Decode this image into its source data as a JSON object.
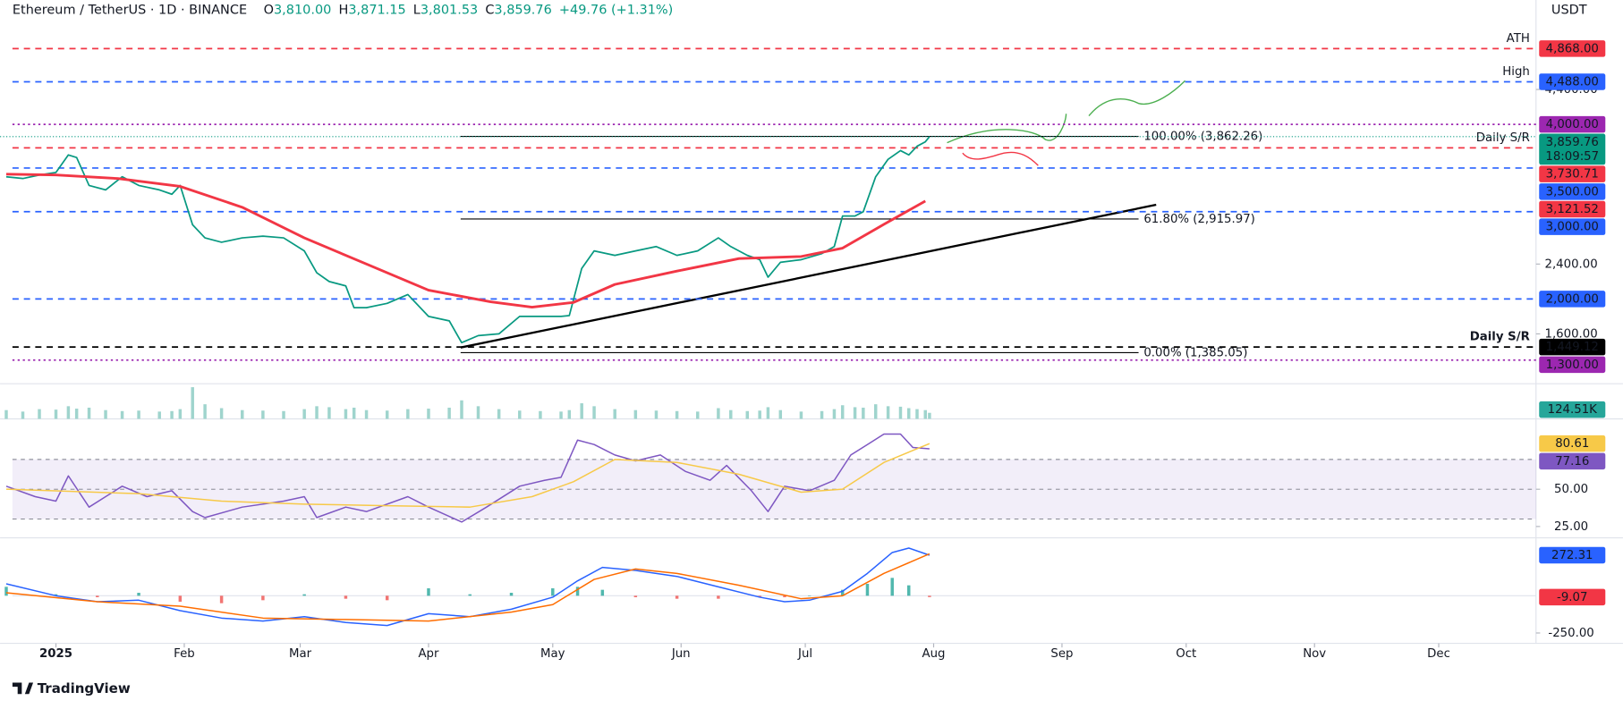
{
  "header": {
    "title": "Ethereum / TetherUS · 1D · BINANCE",
    "ohlc": [
      {
        "key": "O",
        "value": "3,810.00"
      },
      {
        "key": "H",
        "value": "3,871.15"
      },
      {
        "key": "L",
        "value": "3,801.53"
      },
      {
        "key": "C",
        "value": "3,859.76"
      }
    ],
    "change": "+49.76 (+1.31%)",
    "currency": "USDT"
  },
  "footer": {
    "brand": "TradingView"
  },
  "chart_data": [
    {
      "type": "line",
      "xlim": [
        -13.5,
        357.5
      ],
      "ylim": [
        1041,
        5425
      ],
      "yticks": [
        {
          "value": 4400,
          "label": "4,400.00"
        },
        {
          "value": 2400,
          "label": "2,400.00"
        },
        {
          "value": 1600,
          "label": "1,600.00"
        }
      ],
      "series": [
        {
          "color": "#089981",
          "x": [
            -12,
            -8,
            -4,
            0,
            3,
            5,
            8,
            12,
            16,
            20,
            25,
            28,
            30,
            33,
            36,
            40,
            45,
            50,
            55,
            60,
            63,
            66,
            70,
            72,
            75,
            80,
            85,
            90,
            95,
            98,
            102,
            107,
            112,
            117,
            122,
            124,
            127,
            130,
            135,
            140,
            145,
            150,
            155,
            160,
            163,
            167,
            170,
            172,
            175,
            180,
            185,
            188,
            190,
            193,
            195,
            198,
            201,
            204,
            206,
            208,
            210,
            211
          ],
          "values": [
            3400,
            3380,
            3420,
            3450,
            3650,
            3620,
            3300,
            3250,
            3400,
            3300,
            3250,
            3200,
            3300,
            2850,
            2700,
            2650,
            2700,
            2720,
            2700,
            2550,
            2300,
            2200,
            2150,
            1900,
            1900,
            1950,
            2050,
            1800,
            1750,
            1500,
            1580,
            1600,
            1800,
            1800,
            1800,
            1810,
            2350,
            2550,
            2500,
            2550,
            2600,
            2500,
            2550,
            2700,
            2600,
            2500,
            2450,
            2250,
            2420,
            2450,
            2520,
            2600,
            2950,
            2950,
            3000,
            3400,
            3600,
            3700,
            3650,
            3750,
            3800,
            3859.76
          ],
          "tag_label": "3,859.76",
          "tag_sub": "18:09:57"
        },
        {
          "color": "#f23645",
          "x": [
            -12,
            0,
            15,
            30,
            45,
            60,
            75,
            90,
            105,
            115,
            125,
            135,
            150,
            165,
            180,
            190,
            200,
            210
          ],
          "values": [
            3430,
            3420,
            3380,
            3290,
            3050,
            2700,
            2400,
            2100,
            1967,
            1906,
            1960,
            2167,
            2320,
            2463,
            2487,
            2582,
            2855,
            3121.52
          ],
          "tag_label": "3,121.52"
        }
      ],
      "levels": [
        {
          "value": 4868,
          "label": "4,868.00",
          "color": "#f23645",
          "style": "dashed",
          "tag": "ATH"
        },
        {
          "value": 4488,
          "label": "4,488.00",
          "color": "#2962ff",
          "style": "dashed",
          "tag": "High"
        },
        {
          "value": 4000,
          "label": "4,000.00",
          "color": "#9c27b0",
          "style": "dotted"
        },
        {
          "value": 3730.71,
          "label": "3,730.71",
          "color": "#f23645",
          "style": "dashed",
          "tag": "Daily S/R"
        },
        {
          "value": 3500,
          "label": "3,500.00",
          "color": "#2962ff",
          "style": "dashed"
        },
        {
          "value": 3000,
          "label": "3,000.00",
          "color": "#2962ff",
          "style": "dashed"
        },
        {
          "value": 2000,
          "label": "2,000.00",
          "color": "#2962ff",
          "style": "dashed"
        },
        {
          "value": 1449.12,
          "label": "1,449.12",
          "color": "#000000",
          "style": "dashed",
          "tag": "Daily S/R"
        },
        {
          "value": 1300,
          "label": "1,300.00",
          "color": "#9c27b0",
          "style": "dotted"
        }
      ],
      "fib": [
        {
          "value": 3862.26,
          "label": "100.00% (3,862.26)"
        },
        {
          "value": 2915.97,
          "label": "61.80% (2,915.97)"
        },
        {
          "value": 1385.05,
          "label": "0.00% (1,385.05)"
        }
      ]
    },
    {
      "type": "bar",
      "xlim": [
        -13.5,
        357.5
      ],
      "ylim": [
        0,
        700
      ],
      "color": "#9fd4cd",
      "x": [
        -12,
        -8,
        -4,
        0,
        3,
        5,
        8,
        12,
        16,
        20,
        25,
        28,
        30,
        33,
        36,
        40,
        45,
        50,
        55,
        60,
        63,
        66,
        70,
        72,
        75,
        80,
        85,
        90,
        95,
        98,
        102,
        107,
        112,
        117,
        122,
        124,
        127,
        130,
        135,
        140,
        145,
        150,
        155,
        160,
        163,
        167,
        170,
        172,
        175,
        180,
        185,
        188,
        190,
        193,
        195,
        198,
        201,
        204,
        206,
        208,
        210,
        211
      ],
      "values": [
        180,
        150,
        200,
        190,
        260,
        210,
        230,
        180,
        160,
        170,
        150,
        160,
        200,
        650,
        300,
        220,
        180,
        170,
        160,
        200,
        260,
        240,
        200,
        230,
        180,
        170,
        200,
        210,
        230,
        380,
        260,
        200,
        170,
        160,
        150,
        180,
        320,
        260,
        200,
        180,
        170,
        160,
        150,
        220,
        180,
        160,
        170,
        240,
        180,
        150,
        160,
        200,
        280,
        240,
        230,
        300,
        260,
        250,
        220,
        200,
        180,
        124.51
      ],
      "tag_label": "124.51K",
      "tag_color": "#26a69a"
    },
    {
      "type": "line",
      "xlim": [
        -13.5,
        357.5
      ],
      "ylim": [
        17.4,
        97.2
      ],
      "yticks": [
        {
          "value": 50,
          "label": "50.00"
        },
        {
          "value": 25,
          "label": "25.00"
        }
      ],
      "band": [
        30,
        70
      ],
      "levels": [
        70,
        50,
        30
      ],
      "series": [
        {
          "color": "#7e57c2",
          "x": [
            -12,
            -5,
            0,
            3,
            8,
            12,
            16,
            22,
            28,
            33,
            36,
            45,
            55,
            60,
            63,
            70,
            75,
            85,
            90,
            98,
            104,
            112,
            118,
            122,
            126,
            130,
            135,
            140,
            146,
            152,
            158,
            162,
            168,
            172,
            176,
            182,
            188,
            192,
            196,
            200,
            204,
            207,
            211
          ],
          "values": [
            52,
            45,
            42,
            59,
            38,
            45,
            52,
            45,
            49,
            35,
            31,
            38,
            42,
            45,
            31,
            38,
            35,
            45,
            38,
            28,
            38,
            52,
            56,
            58,
            83,
            80,
            73,
            69,
            73,
            62,
            56,
            66,
            49,
            35,
            52,
            49,
            56,
            73,
            80,
            87,
            87,
            78,
            77.16
          ],
          "tag_label": "77.16"
        },
        {
          "color": "#f7c948",
          "x": [
            -12,
            20,
            40,
            60,
            80,
            100,
            115,
            125,
            135,
            150,
            165,
            180,
            190,
            200,
            211
          ],
          "values": [
            50,
            47,
            42,
            40,
            39,
            38,
            45,
            55,
            70,
            68,
            60,
            48,
            50,
            68,
            80.61
          ],
          "tag_label": "80.61"
        }
      ]
    },
    {
      "type": "line",
      "xlim": [
        -13.5,
        357.5
      ],
      "ylim": [
        -319.4,
        388.9
      ],
      "yticks": [
        {
          "value": -250,
          "label": "-250.00"
        }
      ],
      "xticks": [
        {
          "value": 0,
          "label": "2025"
        },
        {
          "value": 31,
          "label": "Feb"
        },
        {
          "value": 59,
          "label": "Mar"
        },
        {
          "value": 90,
          "label": "Apr"
        },
        {
          "value": 120,
          "label": "May"
        },
        {
          "value": 151,
          "label": "Jun"
        },
        {
          "value": 181,
          "label": "Jul"
        },
        {
          "value": 212,
          "label": "Aug"
        },
        {
          "value": 243,
          "label": "Sep"
        },
        {
          "value": 273,
          "label": "Oct"
        },
        {
          "value": 304,
          "label": "Nov"
        },
        {
          "value": 334,
          "label": "Dec"
        }
      ],
      "series": [
        {
          "color": "#2962ff",
          "x": [
            -12,
            0,
            10,
            20,
            30,
            40,
            50,
            60,
            70,
            80,
            90,
            100,
            110,
            120,
            126,
            132,
            140,
            150,
            160,
            170,
            176,
            182,
            190,
            196,
            202,
            206,
            211
          ],
          "values": [
            80,
            0,
            -40,
            -30,
            -100,
            -150,
            -170,
            -140,
            -180,
            -200,
            -120,
            -140,
            -90,
            -10,
            100,
            190,
            170,
            130,
            60,
            -10,
            -40,
            -30,
            30,
            150,
            290,
            320,
            272.31
          ],
          "tag_label": "272.31"
        },
        {
          "color": "#ff6d00",
          "x": [
            -12,
            10,
            30,
            50,
            70,
            90,
            110,
            120,
            130,
            140,
            150,
            165,
            180,
            190,
            200,
            211
          ],
          "values": [
            20,
            -40,
            -70,
            -150,
            -160,
            -170,
            -110,
            -60,
            110,
            180,
            150,
            70,
            -20,
            0,
            150,
            281.38
          ]
        }
      ],
      "histogram": {
        "up_color": "#26a69a",
        "down_color": "#ef5350",
        "x": [
          -12,
          0,
          10,
          20,
          30,
          40,
          50,
          60,
          70,
          80,
          90,
          100,
          110,
          120,
          126,
          132,
          140,
          150,
          160,
          170,
          176,
          182,
          190,
          196,
          202,
          206,
          211
        ],
        "values": [
          60,
          10,
          -10,
          20,
          -40,
          -50,
          -30,
          10,
          -20,
          -30,
          50,
          10,
          20,
          50,
          60,
          40,
          -10,
          -20,
          -20,
          -10,
          -10,
          0,
          40,
          80,
          120,
          70,
          -9.07
        ],
        "tag_label": "-9.07",
        "tag_color": "#f23645"
      }
    }
  ]
}
